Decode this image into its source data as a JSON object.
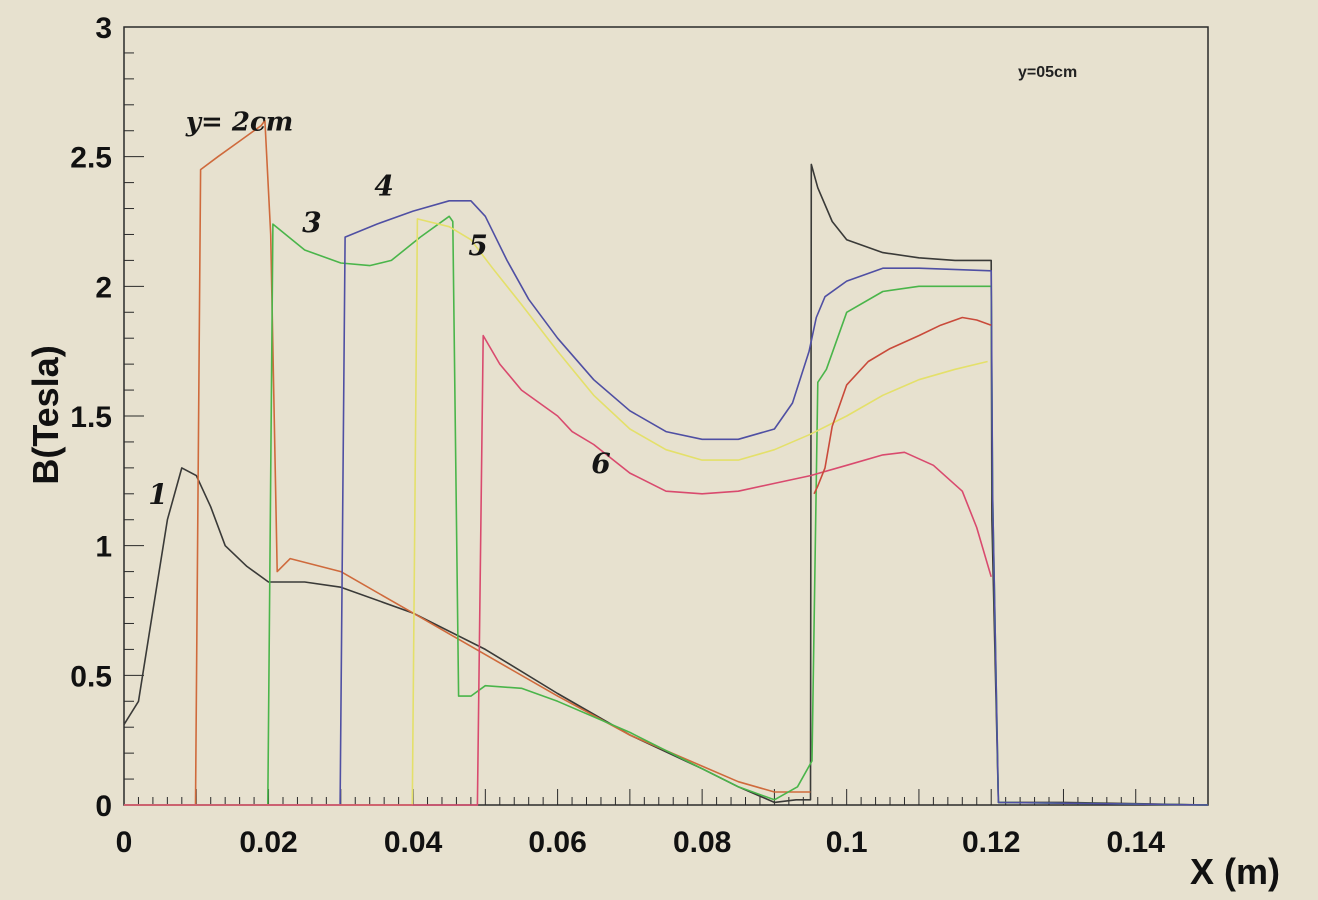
{
  "chart_data": {
    "type": "line",
    "title": "",
    "corner_label": "y=05cm",
    "xlabel": "X (m)",
    "ylabel": "B(Tesla)",
    "xlim": [
      0,
      0.15
    ],
    "ylim": [
      0,
      3
    ],
    "x_ticks": [
      "0",
      "0.02",
      "0.04",
      "0.06",
      "0.08",
      "0.1",
      "0.12",
      "0.14"
    ],
    "y_ticks": [
      "0",
      "0.5",
      "1",
      "1.5",
      "2",
      "2.5",
      "3"
    ],
    "grid": false,
    "series": [
      {
        "name": "1",
        "color": "#3a3a38",
        "x": [
          0,
          0.002,
          0.004,
          0.006,
          0.008,
          0.01,
          0.012,
          0.014,
          0.017,
          0.02,
          0.025,
          0.03,
          0.04,
          0.05,
          0.06,
          0.07,
          0.08,
          0.085,
          0.09,
          0.093,
          0.095,
          0.0951,
          0.096,
          0.098,
          0.1,
          0.105,
          0.11,
          0.115,
          0.12,
          0.1201,
          0.121,
          0.13,
          0.15
        ],
        "y": [
          0.31,
          0.4,
          0.75,
          1.1,
          1.3,
          1.27,
          1.15,
          1.0,
          0.92,
          0.86,
          0.86,
          0.84,
          0.74,
          0.6,
          0.43,
          0.27,
          0.14,
          0.07,
          0.01,
          0.02,
          0.02,
          2.47,
          2.38,
          2.25,
          2.18,
          2.13,
          2.11,
          2.1,
          2.1,
          1.1,
          0.01,
          0.01,
          0.0
        ]
      },
      {
        "name": "y=2cm",
        "color": "#cf6a3c",
        "x": [
          0,
          0.0099,
          0.0106,
          0.013,
          0.016,
          0.019,
          0.0195,
          0.0203,
          0.0212,
          0.023,
          0.03,
          0.04,
          0.05,
          0.06,
          0.07,
          0.08,
          0.085,
          0.09,
          0.095
        ],
        "y": [
          0.0,
          0.0,
          2.45,
          2.5,
          2.56,
          2.62,
          2.64,
          2.2,
          0.9,
          0.95,
          0.9,
          0.74,
          0.58,
          0.42,
          0.27,
          0.15,
          0.09,
          0.05,
          0.05
        ]
      },
      {
        "name": "3",
        "color": "#4ab54a",
        "x": [
          0,
          0.0199,
          0.0206,
          0.025,
          0.03,
          0.034,
          0.037,
          0.041,
          0.045,
          0.0455,
          0.0463,
          0.048,
          0.05,
          0.055,
          0.06,
          0.07,
          0.08,
          0.085,
          0.09,
          0.0932,
          0.0952,
          0.096,
          0.0972,
          0.1,
          0.105,
          0.11,
          0.12,
          0.1202,
          0.121,
          0.15
        ],
        "y": [
          0.0,
          0.0,
          2.24,
          2.14,
          2.09,
          2.08,
          2.1,
          2.19,
          2.27,
          2.25,
          0.42,
          0.42,
          0.46,
          0.45,
          0.4,
          0.28,
          0.14,
          0.07,
          0.02,
          0.07,
          0.17,
          1.63,
          1.68,
          1.9,
          1.98,
          2.0,
          2.0,
          1.2,
          0.01,
          0.0
        ]
      },
      {
        "name": "4",
        "color": "#4f4fa3",
        "x": [
          0,
          0.0299,
          0.0306,
          0.035,
          0.04,
          0.045,
          0.048,
          0.05,
          0.053,
          0.056,
          0.06,
          0.065,
          0.07,
          0.075,
          0.08,
          0.085,
          0.09,
          0.0925,
          0.0948,
          0.0958,
          0.097,
          0.1,
          0.105,
          0.11,
          0.12,
          0.1202,
          0.121,
          0.15
        ],
        "y": [
          0.0,
          0.0,
          2.19,
          2.24,
          2.29,
          2.33,
          2.33,
          2.27,
          2.1,
          1.95,
          1.8,
          1.64,
          1.52,
          1.44,
          1.41,
          1.41,
          1.45,
          1.55,
          1.75,
          1.88,
          1.96,
          2.02,
          2.07,
          2.07,
          2.06,
          1.2,
          0.01,
          0.0
        ]
      },
      {
        "name": "5",
        "color": "#e4e06a",
        "x": [
          0,
          0.0399,
          0.0406,
          0.045,
          0.048,
          0.051,
          0.055,
          0.06,
          0.065,
          0.07,
          0.075,
          0.08,
          0.085,
          0.09,
          0.095,
          0.1,
          0.105,
          0.11,
          0.115,
          0.1195
        ],
        "y": [
          0.0,
          0.0,
          2.26,
          2.23,
          2.18,
          2.07,
          1.93,
          1.75,
          1.58,
          1.45,
          1.37,
          1.33,
          1.33,
          1.37,
          1.43,
          1.5,
          1.58,
          1.64,
          1.68,
          1.71
        ]
      },
      {
        "name": "6",
        "color": "#d94a6e",
        "x": [
          0,
          0.0489,
          0.0497,
          0.052,
          0.055,
          0.06,
          0.062,
          0.065,
          0.07,
          0.075,
          0.08,
          0.085,
          0.09,
          0.095,
          0.1,
          0.105,
          0.108,
          0.112,
          0.116,
          0.118,
          0.12
        ],
        "y": [
          0.0,
          0.0,
          1.81,
          1.7,
          1.6,
          1.5,
          1.44,
          1.39,
          1.28,
          1.21,
          1.2,
          1.21,
          1.24,
          1.27,
          1.31,
          1.35,
          1.36,
          1.31,
          1.21,
          1.07,
          0.88
        ]
      },
      {
        "name": "",
        "color": "#c94a3a",
        "x": [
          0.0955,
          0.096,
          0.097,
          0.098,
          0.1,
          0.103,
          0.106,
          0.11,
          0.113,
          0.116,
          0.118,
          0.12
        ],
        "y": [
          1.2,
          1.23,
          1.3,
          1.46,
          1.62,
          1.71,
          1.76,
          1.81,
          1.85,
          1.88,
          1.87,
          1.85
        ]
      }
    ],
    "annotations": [
      {
        "text": "y= 2cm",
        "x": 0.016,
        "y": 2.6
      },
      {
        "text": "3",
        "x": 0.026,
        "y": 2.21
      },
      {
        "text": "4",
        "x": 0.036,
        "y": 2.35
      },
      {
        "text": "5",
        "x": 0.049,
        "y": 2.12
      },
      {
        "text": "6",
        "x": 0.066,
        "y": 1.28
      },
      {
        "text": "1",
        "x": 0.0047,
        "y": 1.16
      }
    ]
  }
}
